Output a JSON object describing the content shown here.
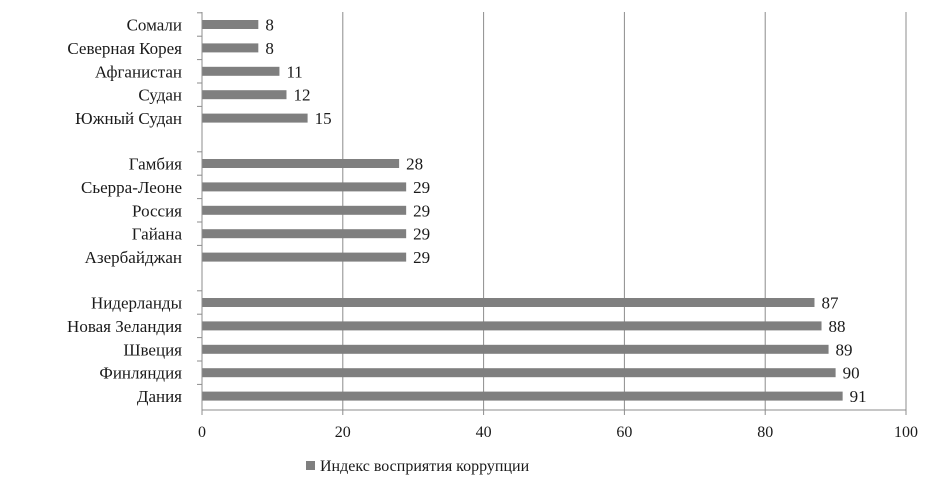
{
  "chart_data": {
    "type": "bar",
    "orientation": "horizontal",
    "categories": [
      "Сомали",
      "Северная Корея",
      "Афганистан",
      "Судан",
      "Южный Судан",
      "Гамбия",
      "Сьерра-Леоне",
      "Россия",
      "Гайана",
      "Азербайджан",
      "Нидерланды",
      "Новая Зеландия",
      "Швеция",
      "Финляндия",
      "Дания"
    ],
    "groups": [
      [
        "Сомали",
        "Северная Корея",
        "Афганистан",
        "Судан",
        "Южный Судан"
      ],
      [
        "Гамбия",
        "Сьерра-Леоне",
        "Россия",
        "Гайана",
        "Азербайджан"
      ],
      [
        "Нидерланды",
        "Новая Зеландия",
        "Швеция",
        "Финляндия",
        "Дания"
      ]
    ],
    "series": [
      {
        "name": "Индекс восприятия коррупции",
        "values": [
          8,
          8,
          11,
          12,
          15,
          28,
          29,
          29,
          29,
          29,
          87,
          88,
          89,
          90,
          91
        ]
      }
    ],
    "data_labels": [
      "8",
      "8",
      "11",
      "12",
      "15",
      "28",
      "29",
      "29",
      "29",
      "29",
      "87",
      "88",
      "89",
      "90",
      "91"
    ],
    "xlim": [
      0,
      100
    ],
    "xticks": [
      "0",
      "20",
      "40",
      "60",
      "80",
      "100"
    ],
    "grid": "vertical",
    "legend": "bottom",
    "bar_color": "#7f7f7f",
    "title": "",
    "xlabel": "",
    "ylabel": ""
  }
}
